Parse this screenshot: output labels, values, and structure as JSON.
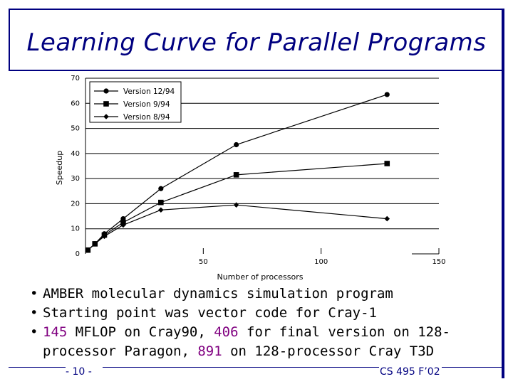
{
  "title": "Learning Curve for Parallel Programs",
  "colors": {
    "frame": "#000080",
    "highlight": "#800080",
    "text": "#000000"
  },
  "chart_data": {
    "type": "line",
    "xlabel": "Number of processors",
    "ylabel": "Speedup",
    "xlim": [
      0,
      150
    ],
    "ylim": [
      0,
      70
    ],
    "xticks": [
      "50",
      "100",
      "150"
    ],
    "yticks": [
      "0",
      "10",
      "20",
      "30",
      "40",
      "50",
      "60",
      "70"
    ],
    "grid": "horizontal",
    "legend_position": "top-left",
    "series": [
      {
        "name": "Version 12/94",
        "marker": "circle",
        "x": [
          1,
          4,
          8,
          16,
          32,
          64,
          128
        ],
        "y": [
          1.5,
          4,
          8,
          14,
          26,
          43.5,
          63.5
        ]
      },
      {
        "name": "Version 9/94",
        "marker": "square",
        "x": [
          1,
          4,
          8,
          16,
          32,
          64,
          128
        ],
        "y": [
          1.5,
          4,
          7.5,
          12.5,
          20.5,
          31.5,
          36
        ]
      },
      {
        "name": "Version 8/94",
        "marker": "diamond",
        "x": [
          1,
          4,
          8,
          16,
          32,
          64,
          128
        ],
        "y": [
          1.5,
          4,
          7,
          11.5,
          17.5,
          19.5,
          14
        ]
      }
    ]
  },
  "bullets": [
    {
      "marker": "•",
      "parts": [
        {
          "text": "AMBER molecular dynamics simulation program",
          "hl": false
        }
      ]
    },
    {
      "marker": "•",
      "parts": [
        {
          "text": "Starting point was vector code for Cray-1",
          "hl": false
        }
      ]
    },
    {
      "marker": "•",
      "parts": [
        {
          "text": "145",
          "hl": true
        },
        {
          "text": " MFLOP on Cray90, ",
          "hl": false
        },
        {
          "text": "406",
          "hl": true
        },
        {
          "text": " for final version on 128-processor Paragon, ",
          "hl": false
        },
        {
          "text": "891",
          "hl": true
        },
        {
          "text": " on 128-processor Cray T3D",
          "hl": false
        }
      ]
    }
  ],
  "footer": {
    "page": "- 10 -",
    "course": "CS 495 F’02"
  }
}
